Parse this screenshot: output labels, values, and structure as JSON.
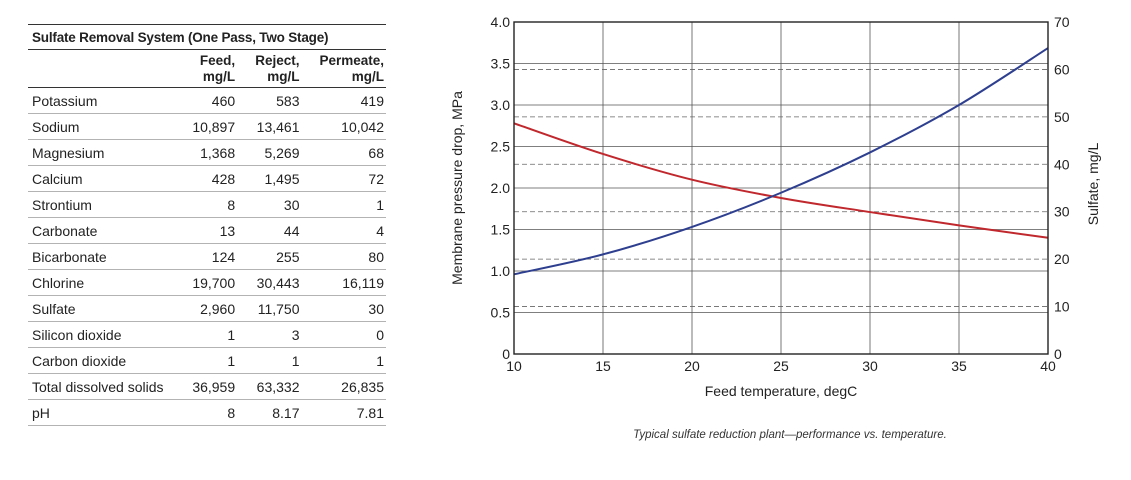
{
  "table": {
    "title": "Sulfate Removal System (One Pass, Two Stage)",
    "headers": [
      {
        "line1": "",
        "line2": ""
      },
      {
        "line1": "Feed,",
        "line2": "mg/L"
      },
      {
        "line1": "Reject,",
        "line2": "mg/L"
      },
      {
        "line1": "Permeate,",
        "line2": "mg/L"
      }
    ],
    "rows": [
      {
        "name": "Potassium",
        "feed": "460",
        "reject": "583",
        "permeate": "419"
      },
      {
        "name": "Sodium",
        "feed": "10,897",
        "reject": "13,461",
        "permeate": "10,042"
      },
      {
        "name": "Magnesium",
        "feed": "1,368",
        "reject": "5,269",
        "permeate": "68"
      },
      {
        "name": "Calcium",
        "feed": "428",
        "reject": "1,495",
        "permeate": "72"
      },
      {
        "name": "Strontium",
        "feed": "8",
        "reject": "30",
        "permeate": "1"
      },
      {
        "name": "Carbonate",
        "feed": "13",
        "reject": "44",
        "permeate": "4"
      },
      {
        "name": "Bicarbonate",
        "feed": "124",
        "reject": "255",
        "permeate": "80"
      },
      {
        "name": "Chlorine",
        "feed": "19,700",
        "reject": "30,443",
        "permeate": "16,119"
      },
      {
        "name": "Sulfate",
        "feed": "2,960",
        "reject": "11,750",
        "permeate": "30"
      },
      {
        "name": "Silicon dioxide",
        "feed": "1",
        "reject": "3",
        "permeate": "0"
      },
      {
        "name": "Carbon dioxide",
        "feed": "1",
        "reject": "1",
        "permeate": "1"
      },
      {
        "name": "Total dissolved solids",
        "feed": "36,959",
        "reject": "63,332",
        "permeate": "26,835"
      },
      {
        "name": "pH",
        "feed": "8",
        "reject": "8.17",
        "permeate": "7.81"
      }
    ]
  },
  "chart_data": {
    "type": "line",
    "title": "",
    "xlabel": "Feed temperature, degC",
    "ylabel": "Membrane pressure drop, MPa",
    "y2label": "Sulfate, mg/L",
    "xlim": [
      10,
      40
    ],
    "ylim": [
      0,
      4.0
    ],
    "y2lim": [
      0,
      70
    ],
    "xticks": [
      10,
      15,
      20,
      25,
      30,
      35,
      40
    ],
    "xtick_labels": [
      "10",
      "15",
      "20",
      "25",
      "30",
      "35",
      "40"
    ],
    "yticks": [
      0,
      0.5,
      1.0,
      1.5,
      2.0,
      2.5,
      3.0,
      3.5,
      4.0
    ],
    "ytick_labels": [
      "0",
      "0.5",
      "1.0",
      "1.5",
      "2.0",
      "2.5",
      "3.0",
      "3.5",
      "4.0"
    ],
    "y2ticks": [
      0,
      10,
      20,
      30,
      40,
      50,
      60,
      70
    ],
    "y2tick_labels": [
      "0",
      "10",
      "20",
      "30",
      "40",
      "50",
      "60",
      "70"
    ],
    "grid": "solid vertical and horizontal on left axis; dashed horizontal on right axis",
    "series": [
      {
        "axis": "left",
        "color": "#c0282d",
        "x": [
          10,
          15,
          20,
          25,
          30,
          35,
          40
        ],
        "y": [
          2.78,
          2.41,
          2.1,
          1.88,
          1.71,
          1.55,
          1.4
        ]
      },
      {
        "axis": "right",
        "color": "#2e3f8f",
        "x": [
          10,
          15,
          20,
          25,
          30,
          35,
          40
        ],
        "y": [
          16.8,
          21.0,
          26.8,
          34.0,
          42.5,
          52.5,
          64.5
        ]
      }
    ]
  },
  "caption": "Typical sulfate reduction plant—performance vs. temperature."
}
